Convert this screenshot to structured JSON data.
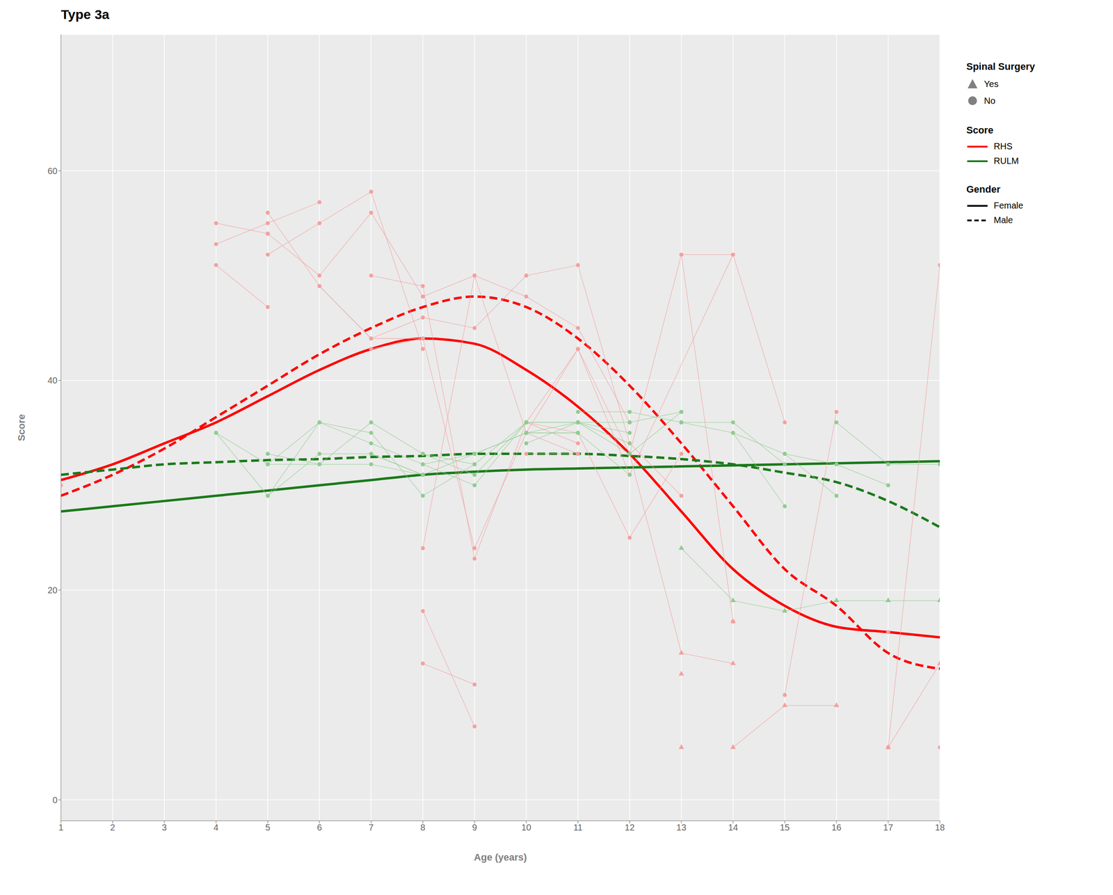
{
  "chart_data": {
    "type": "line",
    "title": "Type 3a",
    "x_label": "Age (years)",
    "y_label": "Score",
    "xlim": [
      1,
      18
    ],
    "ylim": [
      -2,
      73
    ],
    "xticks": [
      1,
      2,
      3,
      4,
      5,
      6,
      7,
      8,
      9,
      10,
      11,
      12,
      13,
      14,
      15,
      16,
      17,
      18
    ],
    "yticks": [
      0,
      20,
      40,
      60
    ],
    "grid": true,
    "legend": "right",
    "background_color": "#ebebeb",
    "grid_color": "#ffffff",
    "surgery_legend": {
      "title": "Spinal Surgery",
      "entries": [
        "Yes",
        "No"
      ]
    },
    "score_legend": {
      "title": "Score",
      "entries": [
        "RHS",
        "RULM"
      ]
    },
    "gender_legend": {
      "title": "Gender",
      "entries": [
        "Female",
        "Male"
      ]
    },
    "trajectory_groups": [
      {
        "score": "RHS",
        "spinal_surgery": "No",
        "color": "#f4a0a0",
        "marker": "circle",
        "paths": [
          [
            [
              1,
              30
            ]
          ],
          [
            [
              4,
              55
            ],
            [
              5,
              54
            ]
          ],
          [
            [
              4,
              53
            ],
            [
              5,
              55
            ],
            [
              6,
              57
            ]
          ],
          [
            [
              4,
              51
            ],
            [
              5,
              47
            ]
          ],
          [
            [
              5,
              56
            ],
            [
              6,
              49
            ],
            [
              7,
              44
            ],
            [
              8,
              44
            ]
          ],
          [
            [
              5,
              52
            ],
            [
              6,
              55
            ],
            [
              7,
              58
            ],
            [
              8,
              43
            ]
          ],
          [
            [
              5,
              54
            ],
            [
              6,
              50
            ],
            [
              7,
              56
            ],
            [
              8,
              48
            ],
            [
              9,
              50
            ]
          ],
          [
            [
              6,
              49
            ],
            [
              7,
              44
            ],
            [
              8,
              46
            ],
            [
              9,
              45
            ],
            [
              10,
              50
            ]
          ],
          [
            [
              7,
              43
            ],
            [
              8,
              44
            ],
            [
              9,
              24
            ],
            [
              10,
              35
            ],
            [
              11,
              33
            ]
          ],
          [
            [
              7,
              50
            ],
            [
              8,
              49
            ],
            [
              9,
              23
            ],
            [
              10,
              36
            ],
            [
              11,
              35
            ]
          ],
          [
            [
              8,
              13
            ],
            [
              9,
              11
            ]
          ],
          [
            [
              8,
              18
            ],
            [
              9,
              7
            ]
          ],
          [
            [
              8,
              24
            ],
            [
              9,
              50
            ],
            [
              10,
              48
            ],
            [
              11,
              45
            ],
            [
              12,
              36
            ]
          ],
          [
            [
              9,
              50
            ],
            [
              10,
              35
            ],
            [
              11,
              43
            ],
            [
              12,
              33
            ]
          ],
          [
            [
              10,
              33
            ],
            [
              11,
              33
            ]
          ],
          [
            [
              10,
              36
            ],
            [
              11,
              34
            ]
          ],
          [
            [
              10,
              36
            ],
            [
              11,
              43
            ],
            [
              12,
              31
            ]
          ],
          [
            [
              10,
              50
            ],
            [
              11,
              51
            ],
            [
              12,
              34
            ],
            [
              13,
              29
            ]
          ],
          [
            [
              11,
              35
            ],
            [
              12,
              25
            ],
            [
              13,
              33
            ]
          ],
          [
            [
              12,
              33
            ],
            [
              13,
              52
            ],
            [
              14,
              17
            ]
          ],
          [
            [
              12,
              31
            ],
            [
              14,
              52
            ]
          ],
          [
            [
              13,
              52
            ],
            [
              14,
              52
            ],
            [
              15,
              36
            ]
          ],
          [
            [
              15,
              10
            ],
            [
              16,
              37
            ]
          ],
          [
            [
              17,
              5
            ],
            [
              18,
              51
            ]
          ],
          [
            [
              17,
              16
            ]
          ],
          [
            [
              18,
              5
            ]
          ]
        ]
      },
      {
        "score": "RHS",
        "spinal_surgery": "Yes",
        "color": "#f4a0a0",
        "marker": "triangle",
        "paths": [
          [
            [
              12,
              33
            ],
            [
              13,
              14
            ],
            [
              14,
              13
            ]
          ],
          [
            [
              13,
              5
            ]
          ],
          [
            [
              13,
              12
            ]
          ],
          [
            [
              14,
              5
            ],
            [
              15,
              9
            ],
            [
              16,
              9
            ]
          ],
          [
            [
              14,
              17
            ]
          ],
          [
            [
              17,
              5
            ],
            [
              18,
              13
            ]
          ]
        ]
      },
      {
        "score": "RULM",
        "spinal_surgery": "No",
        "color": "#90cc90",
        "marker": "circle",
        "paths": [
          [
            [
              4,
              35
            ],
            [
              5,
              32
            ],
            [
              6,
              32
            ],
            [
              7,
              32
            ],
            [
              8,
              31
            ]
          ],
          [
            [
              4,
              35
            ],
            [
              5,
              29
            ],
            [
              6,
              33
            ],
            [
              7,
              33
            ],
            [
              8,
              31
            ]
          ],
          [
            [
              5,
              32
            ],
            [
              6,
              36
            ],
            [
              7,
              34
            ],
            [
              8,
              32
            ],
            [
              9,
              33
            ]
          ],
          [
            [
              5,
              33
            ],
            [
              6,
              32
            ],
            [
              7,
              36
            ],
            [
              8,
              33
            ],
            [
              9,
              31
            ]
          ],
          [
            [
              5,
              29
            ],
            [
              6,
              36
            ],
            [
              7,
              35
            ],
            [
              8,
              29
            ],
            [
              9,
              32
            ]
          ],
          [
            [
              7,
              33
            ],
            [
              8,
              31
            ],
            [
              9,
              33
            ],
            [
              10,
              35
            ]
          ],
          [
            [
              8,
              32
            ],
            [
              9,
              30
            ],
            [
              10,
              36
            ]
          ],
          [
            [
              8,
              33
            ],
            [
              9,
              32
            ],
            [
              10,
              36
            ]
          ],
          [
            [
              9,
              33
            ],
            [
              10,
              35
            ],
            [
              11,
              35
            ]
          ],
          [
            [
              9,
              31
            ],
            [
              10,
              36
            ],
            [
              11,
              36
            ]
          ],
          [
            [
              10,
              36
            ],
            [
              11,
              36
            ],
            [
              12,
              36
            ]
          ],
          [
            [
              10,
              35
            ],
            [
              11,
              36
            ],
            [
              12,
              35
            ]
          ],
          [
            [
              10,
              34
            ],
            [
              11,
              36
            ],
            [
              12,
              34
            ]
          ],
          [
            [
              10,
              35
            ],
            [
              11,
              35
            ],
            [
              12,
              31
            ]
          ],
          [
            [
              11,
              37
            ],
            [
              12,
              37
            ],
            [
              13,
              36
            ]
          ],
          [
            [
              11,
              36
            ],
            [
              12,
              33
            ],
            [
              13,
              37
            ]
          ],
          [
            [
              12,
              36
            ],
            [
              13,
              37
            ]
          ],
          [
            [
              13,
              36
            ],
            [
              14,
              35
            ],
            [
              15,
              28
            ]
          ],
          [
            [
              13,
              36
            ],
            [
              14,
              36
            ],
            [
              15,
              32
            ]
          ],
          [
            [
              14,
              35
            ],
            [
              15,
              33
            ],
            [
              16,
              29
            ]
          ],
          [
            [
              15,
              33
            ],
            [
              16,
              32
            ],
            [
              17,
              30
            ]
          ],
          [
            [
              16,
              36
            ],
            [
              17,
              32
            ],
            [
              18,
              32
            ]
          ]
        ]
      },
      {
        "score": "RULM",
        "spinal_surgery": "Yes",
        "color": "#90cc90",
        "marker": "triangle",
        "paths": [
          [
            [
              13,
              24
            ],
            [
              14,
              19
            ],
            [
              15,
              18
            ],
            [
              16,
              19
            ],
            [
              17,
              19
            ],
            [
              18,
              19
            ]
          ]
        ]
      }
    ],
    "series": [
      {
        "score": "RHS",
        "gender": "Female",
        "color": "#FF0000",
        "line_style": "solid",
        "x": [
          1,
          2,
          3,
          4,
          5,
          6,
          7,
          8,
          9,
          10,
          11,
          12,
          13,
          14,
          15,
          16,
          17,
          18
        ],
        "values": [
          30.5,
          32.0,
          34.0,
          36.0,
          38.5,
          41.0,
          43.0,
          44.0,
          43.5,
          41.0,
          37.5,
          33.0,
          27.5,
          22.0,
          18.5,
          16.5,
          16.0,
          15.5
        ]
      },
      {
        "score": "RHS",
        "gender": "Male",
        "color": "#FF0000",
        "line_style": "dashed",
        "x": [
          1,
          2,
          3,
          4,
          5,
          6,
          7,
          8,
          9,
          10,
          11,
          12,
          13,
          14,
          15,
          16,
          17,
          18
        ],
        "values": [
          29.0,
          31.0,
          33.5,
          36.5,
          39.5,
          42.5,
          45.0,
          47.0,
          48.0,
          47.0,
          44.0,
          39.5,
          34.0,
          28.0,
          22.0,
          18.5,
          14.0,
          12.5
        ]
      },
      {
        "score": "RULM",
        "gender": "Female",
        "color": "#1a7a1a",
        "line_style": "solid",
        "x": [
          1,
          2,
          3,
          4,
          5,
          6,
          7,
          8,
          9,
          10,
          11,
          12,
          13,
          14,
          15,
          16,
          17,
          18
        ],
        "values": [
          27.5,
          28.0,
          28.5,
          29.0,
          29.5,
          30.0,
          30.5,
          31.0,
          31.3,
          31.5,
          31.6,
          31.7,
          31.8,
          31.9,
          32.0,
          32.1,
          32.2,
          32.3
        ]
      },
      {
        "score": "RULM",
        "gender": "Male",
        "color": "#1a7a1a",
        "line_style": "dashed",
        "x": [
          1,
          2,
          3,
          4,
          5,
          6,
          7,
          8,
          9,
          10,
          11,
          12,
          13,
          14,
          15,
          16,
          17,
          18
        ],
        "values": [
          31.0,
          31.5,
          32.0,
          32.2,
          32.4,
          32.5,
          32.7,
          32.8,
          33.0,
          33.0,
          33.0,
          32.8,
          32.5,
          32.0,
          31.2,
          30.3,
          28.5,
          26.0
        ]
      }
    ]
  }
}
